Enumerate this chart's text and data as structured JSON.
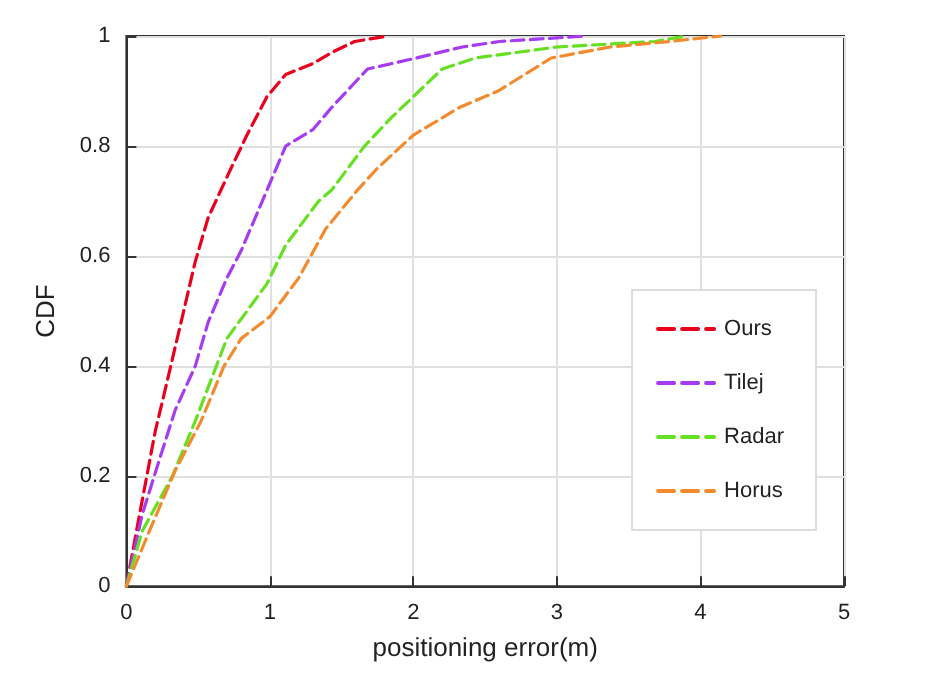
{
  "chart_data": {
    "type": "line",
    "xlabel": "positioning error(m)",
    "ylabel": "CDF",
    "xlim": [
      0,
      5
    ],
    "xticks": [
      0,
      1,
      2,
      3,
      4,
      5
    ],
    "ylim": [
      0,
      1
    ],
    "yticks": [
      0,
      0.2,
      0.4,
      0.6,
      0.8,
      1
    ],
    "grid": true,
    "legend": "bottom right",
    "line_style": "dashed",
    "marker": "none",
    "series": [
      {
        "name": "Ours",
        "color": "#e8001c",
        "x": [
          0,
          0.07,
          0.2,
          0.3,
          0.48,
          0.57,
          0.73,
          0.84,
          0.98,
          1.11,
          1.3,
          1.43,
          1.59,
          1.82
        ],
        "values": [
          0,
          0.1,
          0.28,
          0.39,
          0.59,
          0.67,
          0.76,
          0.82,
          0.89,
          0.93,
          0.95,
          0.97,
          0.99,
          1
        ]
      },
      {
        "name": "Tilej",
        "color": "#a63cf0",
        "x": [
          0,
          0.11,
          0.23,
          0.34,
          0.48,
          0.57,
          0.7,
          0.8,
          0.98,
          1.11,
          1.3,
          1.43,
          1.68,
          2.02,
          2.34,
          2.6,
          3.2
        ],
        "values": [
          0,
          0.13,
          0.23,
          0.32,
          0.4,
          0.48,
          0.56,
          0.61,
          0.72,
          0.8,
          0.83,
          0.87,
          0.94,
          0.96,
          0.98,
          0.99,
          1
        ]
      },
      {
        "name": "Radar",
        "color": "#66e022",
        "x": [
          0,
          0.11,
          0.32,
          0.48,
          0.7,
          0.98,
          1.11,
          1.34,
          1.43,
          1.66,
          1.84,
          2,
          2.2,
          2.43,
          3,
          3.68,
          3.9
        ],
        "values": [
          0,
          0.1,
          0.2,
          0.3,
          0.45,
          0.55,
          0.62,
          0.7,
          0.72,
          0.8,
          0.85,
          0.89,
          0.94,
          0.96,
          0.98,
          0.99,
          1
        ]
      },
      {
        "name": "Horus",
        "color": "#f28a2e",
        "x": [
          0,
          0.16,
          0.34,
          0.52,
          0.68,
          0.8,
          1,
          1.2,
          1.39,
          1.61,
          1.75,
          2,
          2.32,
          2.59,
          2.96,
          3.37,
          3.78,
          4.14
        ],
        "values": [
          0,
          0.1,
          0.21,
          0.3,
          0.4,
          0.45,
          0.49,
          0.56,
          0.65,
          0.72,
          0.76,
          0.82,
          0.87,
          0.9,
          0.96,
          0.98,
          0.99,
          1
        ]
      }
    ]
  }
}
